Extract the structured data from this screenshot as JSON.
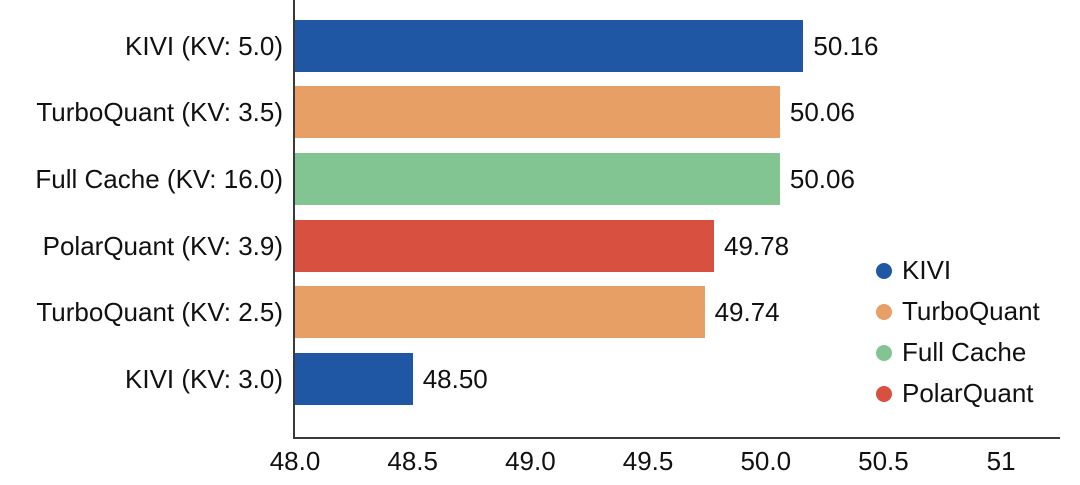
{
  "chart_data": {
    "type": "bar",
    "orientation": "horizontal",
    "title": "",
    "xlabel": "",
    "ylabel": "",
    "categories": [
      "KIVI (KV: 5.0)",
      "TurboQuant (KV: 3.5)",
      "Full Cache (KV: 16.0)",
      "PolarQuant (KV: 3.9)",
      "TurboQuant (KV: 2.5)",
      "KIVI (KV: 3.0)"
    ],
    "values": [
      50.16,
      50.06,
      50.06,
      49.78,
      49.74,
      48.5
    ],
    "value_labels": [
      "50.16",
      "50.06",
      "50.06",
      "49.78",
      "49.74",
      "48.50"
    ],
    "bar_series": [
      "KIVI",
      "TurboQuant",
      "Full Cache",
      "PolarQuant",
      "TurboQuant",
      "KIVI"
    ],
    "bar_colors": [
      "#2057A5",
      "#E89F66",
      "#82C593",
      "#D8503F",
      "#E89F66",
      "#2057A5"
    ],
    "xlim": [
      48.0,
      51.25
    ],
    "x_tick_values": [
      48.0,
      48.5,
      49.0,
      49.5,
      50.0,
      50.5,
      51.0
    ],
    "x_ticks": [
      "48.0",
      "48.5",
      "49.0",
      "49.5",
      "50.0",
      "50.5",
      "51"
    ],
    "grid": false,
    "legend_position": "right",
    "legend": [
      {
        "label": "KIVI",
        "color": "#2057A5"
      },
      {
        "label": "TurboQuant",
        "color": "#E89F66"
      },
      {
        "label": "Full Cache",
        "color": "#82C593"
      },
      {
        "label": "PolarQuant",
        "color": "#D8503F"
      }
    ]
  },
  "colors": {
    "axis": "#3a3a3a",
    "text": "#111111",
    "background": "#ffffff"
  }
}
